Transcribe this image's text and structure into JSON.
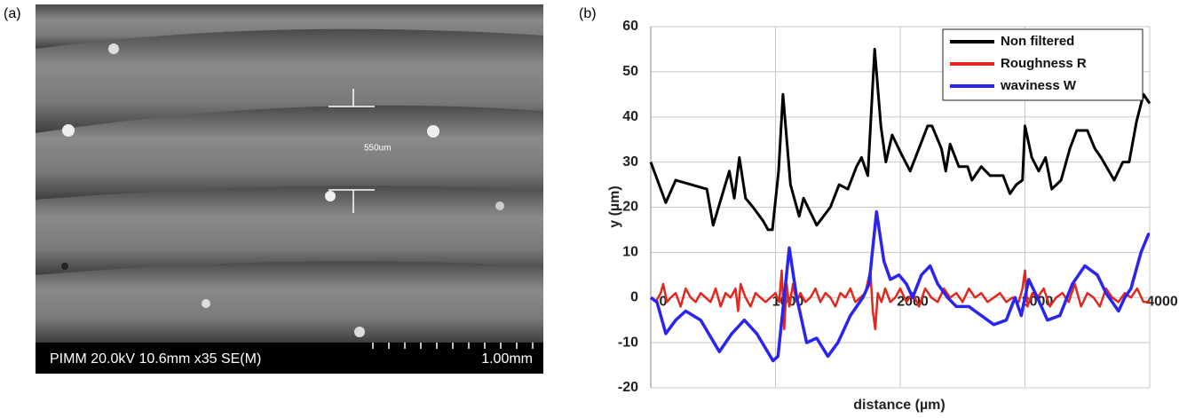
{
  "panel_a": {
    "label": "(a)",
    "info_bar": "PIMM 20.0kV 10.6mm x35 SE(M)",
    "scale_bar": "1.00mm",
    "annotation": "550um"
  },
  "chart_data": {
    "type": "line",
    "panel_label": "(b)",
    "x_label": "distance (µm)",
    "y_label": "y (µm)",
    "xlim": [
      0,
      4000
    ],
    "xticks": [
      0,
      1000,
      2000,
      3000,
      4000
    ],
    "ylim": [
      -20,
      60
    ],
    "yticks": [
      -20,
      -10,
      0,
      10,
      20,
      30,
      40,
      50,
      60
    ],
    "grid": true,
    "legend": "upper-right",
    "series": [
      {
        "name": "Non filtered",
        "color": "#000000",
        "x": [
          0,
          120,
          200,
          450,
          500,
          630,
          670,
          710,
          760,
          820,
          900,
          940,
          975,
          1025,
          1060,
          1120,
          1190,
          1225,
          1330,
          1440,
          1510,
          1580,
          1650,
          1690,
          1740,
          1795,
          1845,
          1885,
          1935,
          2005,
          2080,
          2220,
          2255,
          2330,
          2365,
          2400,
          2470,
          2540,
          2575,
          2650,
          2720,
          2825,
          2880,
          2930,
          2980,
          3000,
          3055,
          3110,
          3165,
          3215,
          3290,
          3360,
          3415,
          3500,
          3560,
          3610,
          3715,
          3785,
          3835,
          3895,
          3950,
          4000
        ],
        "values": [
          30,
          21,
          26,
          24,
          16,
          28,
          22,
          31,
          22,
          20,
          17,
          15,
          15,
          28,
          45,
          25,
          18,
          22,
          16,
          20,
          25,
          24,
          29,
          31,
          27,
          55,
          38,
          30,
          36,
          32,
          28,
          38,
          38,
          33,
          28,
          34,
          29,
          29,
          26,
          29,
          27,
          27,
          23,
          25,
          26,
          38,
          31,
          28,
          31,
          24,
          26,
          33,
          37,
          37,
          33,
          31,
          26,
          30,
          30,
          39,
          45,
          43
        ]
      },
      {
        "name": "Roughness R",
        "color": "#e0281e",
        "x": [
          0,
          40,
          80,
          100,
          130,
          160,
          200,
          240,
          280,
          320,
          360,
          400,
          440,
          480,
          520,
          560,
          600,
          640,
          680,
          700,
          720,
          760,
          800,
          840,
          880,
          920,
          960,
          1000,
          1030,
          1050,
          1070,
          1090,
          1110,
          1140,
          1170,
          1200,
          1240,
          1280,
          1320,
          1360,
          1400,
          1440,
          1480,
          1520,
          1560,
          1600,
          1640,
          1680,
          1720,
          1760,
          1780,
          1800,
          1820,
          1850,
          1880,
          1920,
          1960,
          2000,
          2050,
          2100,
          2150,
          2200,
          2250,
          2300,
          2350,
          2400,
          2450,
          2500,
          2550,
          2600,
          2650,
          2700,
          2750,
          2800,
          2850,
          2900,
          2950,
          2980,
          3000,
          3020,
          3060,
          3100,
          3150,
          3200,
          3250,
          3300,
          3350,
          3400,
          3450,
          3500,
          3550,
          3600,
          3650,
          3700,
          3750,
          3800,
          3850,
          3900,
          3950,
          4000
        ],
        "values": [
          0,
          -1,
          1,
          3,
          -1,
          0,
          1,
          -2,
          2,
          0,
          -1,
          1,
          0,
          -1,
          2,
          -2,
          1,
          0,
          2,
          -3,
          3,
          0,
          -2,
          1,
          0,
          -1,
          0,
          1,
          -1,
          6,
          -7,
          3,
          -2,
          3,
          -1,
          1,
          -1,
          0,
          2,
          -1,
          1,
          0,
          -2,
          1,
          0,
          2,
          -1,
          0,
          1,
          6,
          -3,
          -7,
          1,
          -1,
          2,
          -1,
          0,
          2,
          -1,
          1,
          -2,
          2,
          0,
          -1,
          2,
          0,
          1,
          -1,
          2,
          0,
          1,
          -1,
          0,
          1,
          -1,
          0,
          -1,
          2,
          6,
          -2,
          1,
          0,
          2,
          -2,
          0,
          1,
          -1,
          3,
          -2,
          1,
          0,
          -2,
          2,
          0,
          -1,
          1,
          0,
          2,
          -1,
          -1
        ]
      },
      {
        "name": "waviness W",
        "color": "#2a24f0",
        "x": [
          0,
          50,
          120,
          200,
          280,
          400,
          550,
          650,
          750,
          850,
          980,
          1020,
          1070,
          1110,
          1170,
          1250,
          1330,
          1420,
          1500,
          1600,
          1700,
          1750,
          1810,
          1870,
          1920,
          1990,
          2050,
          2100,
          2170,
          2240,
          2300,
          2380,
          2450,
          2550,
          2650,
          2750,
          2850,
          2920,
          2970,
          3030,
          3100,
          3180,
          3280,
          3380,
          3480,
          3580,
          3650,
          3750,
          3800,
          3850,
          3930,
          3990,
          4000
        ],
        "values": [
          0,
          -1,
          -8,
          -5,
          -3,
          -5,
          -12,
          -8,
          -5,
          -8,
          -14,
          -13,
          0,
          11,
          0,
          -10,
          -9,
          -13,
          -10,
          -4,
          0,
          3,
          19,
          8,
          4,
          5,
          3,
          0,
          5,
          7,
          3,
          0,
          -2,
          -2,
          -4,
          -6,
          -5,
          0,
          -4,
          4,
          0,
          -5,
          -4,
          3,
          7,
          5,
          1,
          -3,
          0,
          2,
          10,
          14,
          14
        ]
      }
    ]
  }
}
